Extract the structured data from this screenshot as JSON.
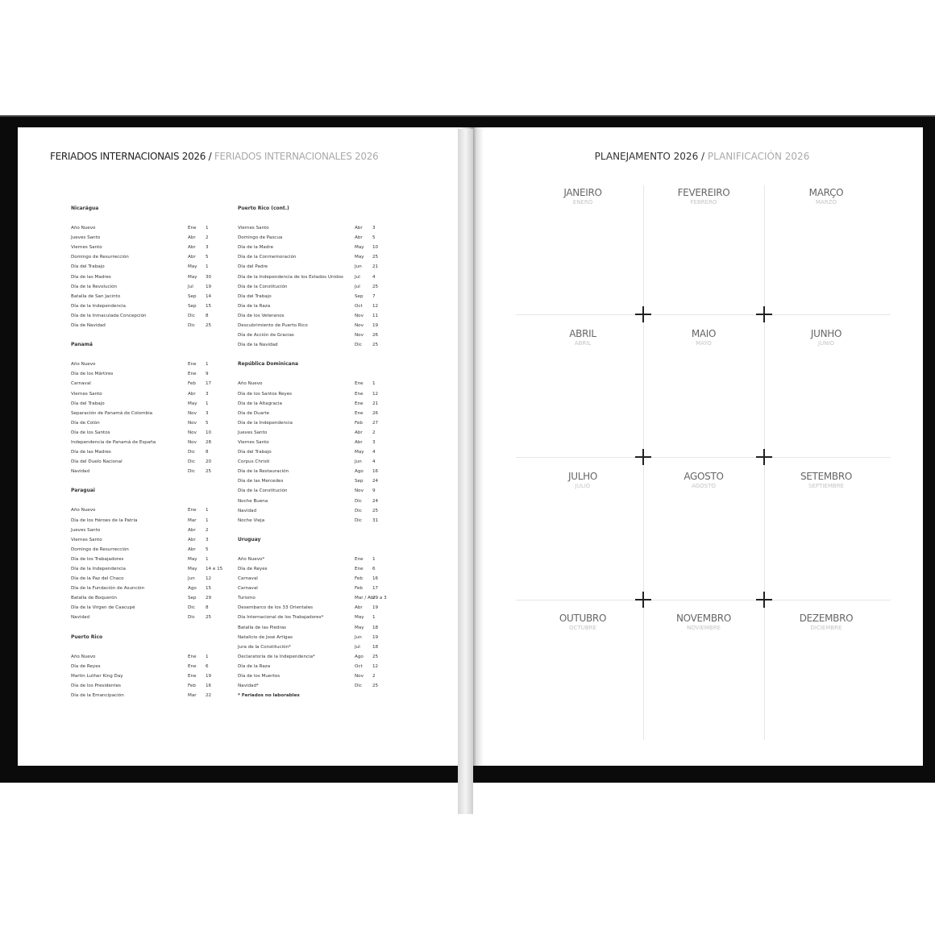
{
  "left_page": {
    "title_pt": "FERIADOS INTERNACIONAIS 2026 /",
    "title_es": "FERIADOS INTERNACIONALES 2026",
    "columns": [
      [
        {
          "heading": "Nicarágua",
          "rows": [
            [
              "Año Nuevo",
              "Ene",
              "1"
            ],
            [
              "Jueves Santo",
              "Abr",
              "2"
            ],
            [
              "Viernes Santo",
              "Abr",
              "3"
            ],
            [
              "Domingo de Resurrección",
              "Abr",
              "5"
            ],
            [
              "Día del Trabajo",
              "May",
              "1"
            ],
            [
              "Día de las Madres",
              "May",
              "30"
            ],
            [
              "Día de la Revolución",
              "Jul",
              "19"
            ],
            [
              "Batalla de San Jacinto",
              "Sep",
              "14"
            ],
            [
              "Día de la Independencia",
              "Sep",
              "15"
            ],
            [
              "Día de la Inmaculada Concepción",
              "Dic",
              "8"
            ],
            [
              "Día de Navidad",
              "Dic",
              "25"
            ]
          ]
        },
        {
          "heading": "Panamá",
          "rows": [
            [
              "Año Nuevo",
              "Ene",
              "1"
            ],
            [
              "Día de los Mártires",
              "Ene",
              "9"
            ],
            [
              "Carnaval",
              "Feb",
              "17"
            ],
            [
              "Viernes Santo",
              "Abr",
              "3"
            ],
            [
              "Día del Trabajo",
              "May",
              "1"
            ],
            [
              "Separación de Panamá de Colombia",
              "Nov",
              "3"
            ],
            [
              "Día de Colón",
              "Nov",
              "5"
            ],
            [
              "Día de los Santos",
              "Nov",
              "10"
            ],
            [
              "Independencia de Panamá de España",
              "Nov",
              "28"
            ],
            [
              "Día de las Madres",
              "Dic",
              "8"
            ],
            [
              "Día del Duelo Nacional",
              "Dic",
              "20"
            ],
            [
              "Navidad",
              "Dic",
              "25"
            ]
          ]
        },
        {
          "heading": "Paraguai",
          "rows": [
            [
              "Año Nuevo",
              "Ene",
              "1"
            ],
            [
              "Día de los Héroes de la Patria",
              "Mar",
              "1"
            ],
            [
              "Jueves Santo",
              "Abr",
              "2"
            ],
            [
              "Viernes Santo",
              "Abr",
              "3"
            ],
            [
              "Domingo de Resurrección",
              "Abr",
              "5"
            ],
            [
              "Día de los Trabajadores",
              "May",
              "1"
            ],
            [
              "Día de la Independencia",
              "May",
              "14 e 15"
            ],
            [
              "Día de la Paz del Chaco",
              "Jun",
              "12"
            ],
            [
              "Día de la Fundación de Asunción",
              "Ago",
              "15"
            ],
            [
              "Batalla de Boquerón",
              "Sep",
              "29"
            ],
            [
              "Día de la Virgen de Caacupé",
              "Dic",
              "8"
            ],
            [
              "Navidad",
              "Dic",
              "25"
            ]
          ]
        },
        {
          "heading": "Puerto Rico",
          "rows": [
            [
              "Año Nuevo",
              "Ene",
              "1"
            ],
            [
              "Día de Reyes",
              "Ene",
              "6"
            ],
            [
              "Martin Luther King Day",
              "Ene",
              "19"
            ],
            [
              "Día de los Presidentes",
              "Feb",
              "16"
            ],
            [
              "Día de la Emancipación",
              "Mar",
              "22"
            ]
          ]
        }
      ],
      [
        {
          "heading": "Puerto Rico (cont.)",
          "rows": [
            [
              "Viernes Santo",
              "Abr",
              "3"
            ],
            [
              "Domingo de Pascua",
              "Abr",
              "5"
            ],
            [
              "Día de la Madre",
              "May",
              "10"
            ],
            [
              "Día de la Conmemoración",
              "May",
              "25"
            ],
            [
              "Día del Padre",
              "Jun",
              "21"
            ],
            [
              "Día de la Independencia de los Estados Unidos",
              "Jul",
              "4"
            ],
            [
              "Día de la Constitución",
              "Jul",
              "25"
            ],
            [
              "Día del Trabajo",
              "Sep",
              "7"
            ],
            [
              "Día de la Raza",
              "Oct",
              "12"
            ],
            [
              "Día de los Veteranos",
              "Nov",
              "11"
            ],
            [
              "Descubrimiento de Puerto Rico",
              "Nov",
              "19"
            ],
            [
              "Día de Acción de Gracias",
              "Nov",
              "26"
            ],
            [
              "Día de la Navidad",
              "Dic",
              "25"
            ]
          ]
        },
        {
          "heading": "República Dominicana",
          "rows": [
            [
              "Año Nuevo",
              "Ene",
              "1"
            ],
            [
              "Día de los Santos Reyes",
              "Ene",
              "12"
            ],
            [
              "Día de la Altagracia",
              "Ene",
              "21"
            ],
            [
              "Día de Duarte",
              "Ene",
              "26"
            ],
            [
              "Día de la Independencia",
              "Feb",
              "27"
            ],
            [
              "Jueves Santo",
              "Abr",
              "2"
            ],
            [
              "Viernes Santo",
              "Abr",
              "3"
            ],
            [
              "Día del Trabajo",
              "May",
              "4"
            ],
            [
              "Corpus Christi",
              "Jun",
              "4"
            ],
            [
              "Día de la Restauración",
              "Ago",
              "16"
            ],
            [
              "Día de las Mercedes",
              "Sep",
              "24"
            ],
            [
              "Día de la Constitución",
              "Nov",
              "9"
            ],
            [
              "Noche Buena",
              "Dic",
              "24"
            ],
            [
              "Navidad",
              "Dic",
              "25"
            ],
            [
              "Noche Vieja",
              "Dic",
              "31"
            ]
          ]
        },
        {
          "heading": "Uruguay",
          "rows": [
            [
              "Año Nuevo*",
              "Ene",
              "1"
            ],
            [
              "Día de Reyes",
              "Ene",
              "6"
            ],
            [
              "Carnaval",
              "Feb",
              "16"
            ],
            [
              "Carnaval",
              "Feb",
              "17"
            ],
            [
              "Turismo",
              "Mar / Abr",
              "29 a 3"
            ],
            [
              "Desembarco de los 33 Orientales",
              "Abr",
              "19"
            ],
            [
              "Día Internacional de los Trabajadores*",
              "May",
              "1"
            ],
            [
              "Batalla de las Piedras",
              "May",
              "18"
            ],
            [
              "Natalicio de José Artigas",
              "Jun",
              "19"
            ],
            [
              "Jura de la Constitución*",
              "Jul",
              "18"
            ],
            [
              "Declaratoria de la Independencia*",
              "Ago",
              "25"
            ],
            [
              "Día de la Raza",
              "Oct",
              "12"
            ],
            [
              "Día de los Muertos",
              "Nov",
              "2"
            ],
            [
              "Navidad*",
              "Dic",
              "25"
            ]
          ],
          "footnote": "* Feriados no laborables"
        }
      ]
    ]
  },
  "right_page": {
    "title_pt": "PLANEJAMENTO 2026 /",
    "title_es": "PLANIFICACIÓN 2026",
    "months": [
      {
        "pt": "JANEIRO",
        "es": "ENERO"
      },
      {
        "pt": "FEVEREIRO",
        "es": "FEBRERO"
      },
      {
        "pt": "MARÇO",
        "es": "MARZO"
      },
      {
        "pt": "ABRIL",
        "es": "ABRIL"
      },
      {
        "pt": "MAIO",
        "es": "MAYO"
      },
      {
        "pt": "JUNHO",
        "es": "JUNIO"
      },
      {
        "pt": "JULHO",
        "es": "JULIO"
      },
      {
        "pt": "AGOSTO",
        "es": "AGOSTO"
      },
      {
        "pt": "SETEMBRO",
        "es": "SEPTIEMBRE"
      },
      {
        "pt": "OUTUBRO",
        "es": "OCTUBRE"
      },
      {
        "pt": "NOVEMBRO",
        "es": "NOVIEMBRE"
      },
      {
        "pt": "DEZEMBRO",
        "es": "DICIEMBRE"
      }
    ]
  }
}
